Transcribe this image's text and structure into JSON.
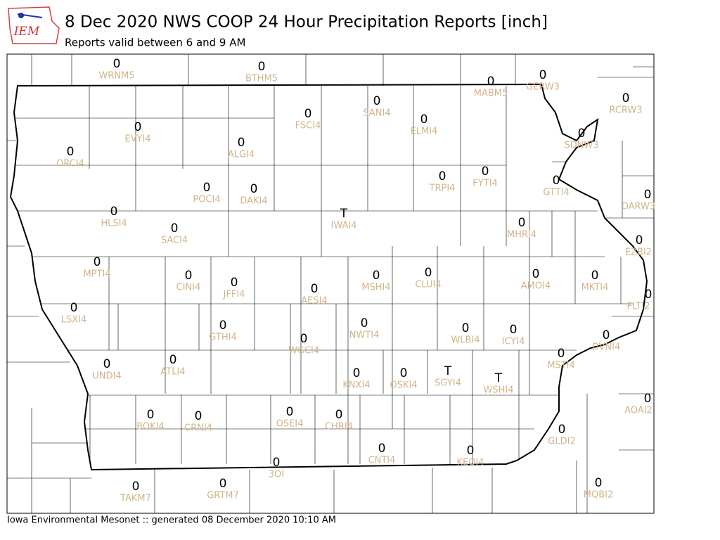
{
  "header": {
    "logo": "IEM",
    "title": "8 Dec 2020 NWS COOP 24 Hour Precipitation Reports [inch]",
    "subtitle": "Reports valid between 6 and 9 AM"
  },
  "stations": [
    {
      "id": "WRNM5",
      "value": "0"
    },
    {
      "id": "BTHM5",
      "value": "0"
    },
    {
      "id": "MABM5",
      "value": "0"
    },
    {
      "id": "GERW3",
      "value": "0"
    },
    {
      "id": "RCRW3",
      "value": "0"
    },
    {
      "id": "SANI4",
      "value": "0"
    },
    {
      "id": "ELMI4",
      "value": "0"
    },
    {
      "id": "FSCI4",
      "value": "0"
    },
    {
      "id": "EVYI4",
      "value": "0"
    },
    {
      "id": "ALGI4",
      "value": "0"
    },
    {
      "id": "ORCI4",
      "value": "0"
    },
    {
      "id": "SDNW3",
      "value": "0"
    },
    {
      "id": "TRPI4",
      "value": "0"
    },
    {
      "id": "FYTI4",
      "value": "0"
    },
    {
      "id": "GTTI4",
      "value": "0"
    },
    {
      "id": "DARW3",
      "value": "0"
    },
    {
      "id": "POCI4",
      "value": "0"
    },
    {
      "id": "DAKI4",
      "value": "0"
    },
    {
      "id": "HLSI4",
      "value": "0"
    },
    {
      "id": "IWAI4",
      "value": "T"
    },
    {
      "id": "SACI4",
      "value": "0"
    },
    {
      "id": "MHRI4",
      "value": "0"
    },
    {
      "id": "EZBI2",
      "value": "0"
    },
    {
      "id": "MPTI4",
      "value": "0"
    },
    {
      "id": "CINI4",
      "value": "0"
    },
    {
      "id": "JFFI4",
      "value": "0"
    },
    {
      "id": "CLUI4",
      "value": "0"
    },
    {
      "id": "MSHI4",
      "value": "0"
    },
    {
      "id": "AMOI4",
      "value": "0"
    },
    {
      "id": "MKTI4",
      "value": "0"
    },
    {
      "id": "AESI4",
      "value": "0"
    },
    {
      "id": "FLTI2",
      "value": "0"
    },
    {
      "id": "LSXI4",
      "value": "0"
    },
    {
      "id": "GTHI4",
      "value": "0"
    },
    {
      "id": "NWTI4",
      "value": "0"
    },
    {
      "id": "WLBI4",
      "value": "0"
    },
    {
      "id": "ICYI4",
      "value": "0"
    },
    {
      "id": "WGCI4",
      "value": "0"
    },
    {
      "id": "DVNI4",
      "value": "0"
    },
    {
      "id": "UNDI4",
      "value": "0"
    },
    {
      "id": "ATLI4",
      "value": "0"
    },
    {
      "id": "MSTI4",
      "value": "0"
    },
    {
      "id": "KNXI4",
      "value": "0"
    },
    {
      "id": "OSKI4",
      "value": "0"
    },
    {
      "id": "SGYI4",
      "value": "T"
    },
    {
      "id": "WSHI4",
      "value": "T"
    },
    {
      "id": "AOAI2",
      "value": "0"
    },
    {
      "id": "BOKI4",
      "value": "0"
    },
    {
      "id": "CRNI4",
      "value": "0"
    },
    {
      "id": "OSEI4",
      "value": "0"
    },
    {
      "id": "CHRI4",
      "value": "0"
    },
    {
      "id": "GLDI2",
      "value": "0"
    },
    {
      "id": "CNTI4",
      "value": "0"
    },
    {
      "id": "KEOI4",
      "value": "0"
    },
    {
      "id": "3OI",
      "value": "0"
    },
    {
      "id": "TAKM7",
      "value": "0"
    },
    {
      "id": "GRTM7",
      "value": "0"
    },
    {
      "id": "MQBI2",
      "value": "0"
    }
  ],
  "footer": "Iowa Environmental Mesonet :: generated 08 December 2020 10:10 AM"
}
